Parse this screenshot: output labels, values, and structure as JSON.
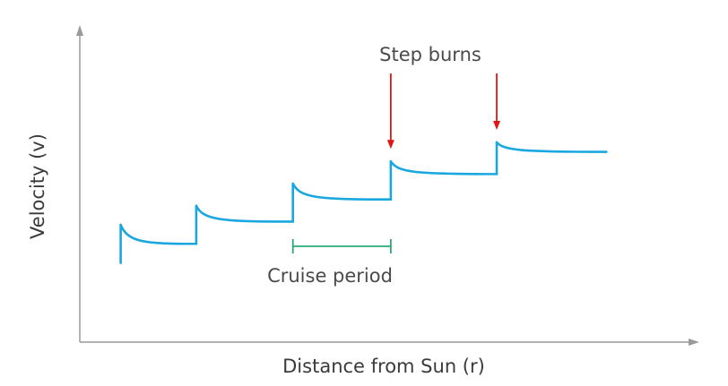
{
  "chart_data": {
    "type": "line",
    "title": "",
    "xlabel": "Distance from Sun (r)",
    "ylabel": "Velocity (v)",
    "series": [
      {
        "segments": [
          {
            "x_start": 0.066,
            "x_end": 0.188,
            "v_low": 0.25,
            "v_high": 0.37,
            "v_end": 0.31
          },
          {
            "x_start": 0.188,
            "x_end": 0.344,
            "v_low": 0.31,
            "v_high": 0.43,
            "v_end": 0.38
          },
          {
            "x_start": 0.344,
            "x_end": 0.502,
            "v_low": 0.38,
            "v_high": 0.5,
            "v_end": 0.45
          },
          {
            "x_start": 0.502,
            "x_end": 0.673,
            "v_low": 0.45,
            "v_high": 0.57,
            "v_end": 0.53
          },
          {
            "x_start": 0.673,
            "x_end": 0.85,
            "v_low": 0.53,
            "v_high": 0.63,
            "v_end": 0.6
          }
        ]
      }
    ],
    "annotations": {
      "step_burns": {
        "label": "Step burns",
        "burn_x": [
          0.502,
          0.673
        ]
      },
      "cruise_period": {
        "label": "Cruise period",
        "x_start": 0.344,
        "x_end": 0.502,
        "v_level": 0.31
      }
    },
    "xlim": [
      0,
      1
    ],
    "ylim": [
      0,
      1
    ],
    "grid": false,
    "ticks": false,
    "colors": {
      "curve": "#1aa7e0",
      "burn_arrow": "#e01414",
      "cruise_bar": "#2aa876",
      "axis": "#9a9a9a"
    }
  }
}
